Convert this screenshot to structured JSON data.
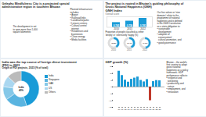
{
  "chart_data": [
    {
      "type": "note",
      "title": "Gelephu Mindfulness City is a projected special\nadministrative region in southern Bhutan",
      "annotations": [
        "The development is set\nto span more than 1,000\nsquare kilometres",
        "Planned infrastructure\nincludes:\n• Airport\n• Rail/road links\n• Landmarks/parks\n• Leisure centres\n• Cultural centre/\n  internet\n• Residences and\n  businesses\n• Clean energy\n• Media facilities"
      ]
    },
    {
      "type": "note",
      "title": "The project is rooted in Bhutan's guiding philosophy of\nGross National Happiness (GNH)",
      "annotations": [
        "Our five values or 'nine\ndomains' relate to the\nprogramme of national\nhappiness and is defined\nin the 2008 Constitution\nas a state obligation to:\n• sustainable\n  development\n• adoption of\n  conservation/\n  cultural promotion, and\n• good governance"
      ]
    },
    {
      "type": "bar",
      "title": "GNH Index",
      "subtitle": "Overall score",
      "categories": [
        "2010",
        "2015",
        "2022"
      ],
      "values": [
        0.743,
        0.756,
        0.781
      ],
      "color": "#1a9bd7",
      "ylim": [
        0.7,
        0.795
      ],
      "yticks": [],
      "tick_labels": "x",
      "data_labels": true
    },
    {
      "type": "donut",
      "title": "Proportion of people classified as either\n'deeply' or 'extensively' happy (%)",
      "categories": [
        "2010",
        "2015",
        "2022"
      ],
      "values": [
        40.8,
        43.4,
        47.9
      ],
      "value_labels": [
        "40.8%",
        "43.4%",
        "47.9%"
      ],
      "color": "#1a9bd7",
      "ylim": [
        0,
        100
      ]
    },
    {
      "type": "pie",
      "title": "India was the top source of foreign direct investment\n(FDI) in 2023",
      "subtitle": "Origin of FDI projects, 2023 (% of total)",
      "categories": [
        "India",
        "Singapore",
        "UAE",
        "US",
        "Others"
      ],
      "values": [
        45,
        20,
        12,
        10,
        13
      ],
      "colors": [
        "#1a9bd7",
        "#5ab4e0",
        "#85c8e8",
        "#aad7f0",
        "#bbbbbb"
      ],
      "legend": "right",
      "annotations": [
        "India\n45%"
      ]
    },
    {
      "type": "bar",
      "title": "GDP growth (%)",
      "categories": [
        "10",
        "11",
        "12",
        "13",
        "14",
        "15",
        "16",
        "17",
        "18",
        "19",
        "20",
        "21",
        "22",
        "23"
      ],
      "values": [
        11.7,
        8.5,
        5.1,
        3.6,
        5.7,
        6.6,
        7.4,
        4.9,
        3.8,
        5.5,
        -10.1,
        4.0,
        4.8,
        4.6
      ],
      "colors": [
        "#1a9bd7",
        "#1a9bd7",
        "#1a9bd7",
        "#1a9bd7",
        "#1a9bd7",
        "#1a9bd7",
        "#1a9bd7",
        "#1a9bd7",
        "#1a9bd7",
        "#1a9bd7",
        "#c0392b",
        "#1a9bd7",
        "#1a9bd7",
        "#1a9bd7"
      ],
      "ylim": [
        -15,
        15
      ],
      "yticks": [
        -15,
        -10,
        -5,
        0,
        5,
        10,
        15
      ],
      "annotations": [
        "Bhutan – the world's\nfirst country to adopt\ngross national\nhappiness as a policy\nframework. GDP\nperformance reflects:\n• resilience and\n  well-being\n• productivity and\n  nature\n• employment, and\n• innovation"
      ]
    }
  ]
}
